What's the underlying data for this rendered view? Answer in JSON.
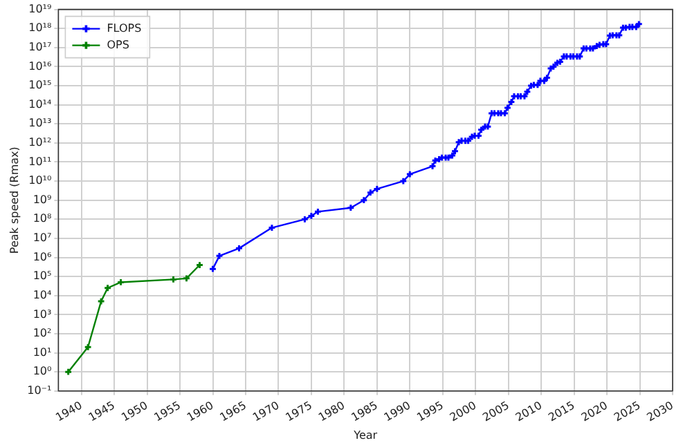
{
  "chart_data": {
    "type": "line",
    "xlabel": "Year",
    "ylabel": "Peak speed (Rmax)",
    "log": "y",
    "grid": true,
    "legend": "top left",
    "marker": "cross",
    "line_style": "solid",
    "xlim": [
      1936.5,
      2030
    ],
    "xticks": [
      1940,
      1945,
      1950,
      1955,
      1960,
      1965,
      1970,
      1975,
      1980,
      1985,
      1990,
      1995,
      2000,
      2005,
      2010,
      2015,
      2020,
      2025,
      2030
    ],
    "ylim": [
      0.1,
      1e+19
    ],
    "yticks": [
      {
        "value": 0.1,
        "label": "10⁻¹"
      },
      {
        "value": 1,
        "label": "10⁰"
      },
      {
        "value": 10,
        "label": "10¹"
      },
      {
        "value": 100,
        "label": "10²"
      },
      {
        "value": 1000.0,
        "label": "10³"
      },
      {
        "value": 10000.0,
        "label": "10⁴"
      },
      {
        "value": 100000.0,
        "label": "10⁵"
      },
      {
        "value": 1000000.0,
        "label": "10⁶"
      },
      {
        "value": 10000000.0,
        "label": "10⁷"
      },
      {
        "value": 100000000.0,
        "label": "10⁸"
      },
      {
        "value": 1000000000.0,
        "label": "10⁹"
      },
      {
        "value": 10000000000.0,
        "label": "10¹⁰"
      },
      {
        "value": 100000000000.0,
        "label": "10¹¹"
      },
      {
        "value": 1000000000000.0,
        "label": "10¹²"
      },
      {
        "value": 10000000000000.0,
        "label": "10¹³"
      },
      {
        "value": 100000000000000.0,
        "label": "10¹⁴"
      },
      {
        "value": 1000000000000000.0,
        "label": "10¹⁵"
      },
      {
        "value": 1e+16,
        "label": "10¹⁶"
      },
      {
        "value": 1e+17,
        "label": "10¹⁷"
      },
      {
        "value": 1e+18,
        "label": "10¹⁸"
      },
      {
        "value": 1e+19,
        "label": "10¹⁹"
      }
    ],
    "series": [
      {
        "name": "FLOPS",
        "color": "#0000ff",
        "x": [
          1960,
          1961,
          1964,
          1969,
          1974,
          1975,
          1976,
          1981,
          1983,
          1984,
          1985,
          1989,
          1990,
          1993.45,
          1993.87,
          1994.45,
          1994.87,
          1995.45,
          1995.87,
          1996.45,
          1996.87,
          1997.45,
          1997.87,
          1998.45,
          1998.87,
          1999.45,
          1999.87,
          2000.45,
          2000.87,
          2001.45,
          2001.87,
          2002.45,
          2002.87,
          2003.45,
          2003.87,
          2004.45,
          2004.87,
          2005.45,
          2005.87,
          2006.45,
          2006.87,
          2007.45,
          2007.87,
          2008.45,
          2008.87,
          2009.45,
          2009.87,
          2010.45,
          2010.87,
          2011.45,
          2011.87,
          2012.45,
          2012.87,
          2013.45,
          2013.87,
          2014.45,
          2014.87,
          2015.45,
          2015.87,
          2016.45,
          2016.87,
          2017.45,
          2017.87,
          2018.45,
          2018.87,
          2019.45,
          2019.87,
          2020.45,
          2020.87,
          2021.45,
          2021.87,
          2022.45,
          2022.87,
          2023.45,
          2023.87,
          2024.45,
          2024.87
        ],
        "values": [
          250000.0,
          1200000.0,
          3000000.0,
          36000000.0,
          100000000.0,
          150000000.0,
          250000000.0,
          400000000.0,
          1000000000.0,
          2500000000.0,
          3900000000.0,
          10000000000.0,
          23000000000.0,
          60000000000.0,
          120000000000.0,
          140000000000.0,
          170000000000.0,
          170000000000.0,
          170000000000.0,
          220000000000.0,
          370000000000.0,
          1100000000000.0,
          1300000000000.0,
          1300000000000.0,
          1300000000000.0,
          2100000000000.0,
          2400000000000.0,
          2400000000000.0,
          4900000000000.0,
          7200000000000.0,
          7200000000000.0,
          36000000000000.0,
          36000000000000.0,
          36000000000000.0,
          36000000000000.0,
          36000000000000.0,
          70000000000000.0,
          140000000000000.0,
          280000000000000.0,
          280000000000000.0,
          280000000000000.0,
          280000000000000.0,
          480000000000000.0,
          1000000000000000.0,
          1100000000000000.0,
          1100000000000000.0,
          1800000000000000.0,
          1800000000000000.0,
          2600000000000000.0,
          8000000000000000.0,
          1e+16,
          1.6e+16,
          1.8e+16,
          3.4e+16,
          3.4e+16,
          3.4e+16,
          3.4e+16,
          3.4e+16,
          3.4e+16,
          9e+16,
          9e+16,
          9e+16,
          9e+16,
          1.2e+17,
          1.4e+17,
          1.5e+17,
          1.5e+17,
          4.2e+17,
          4.4e+17,
          4.4e+17,
          4.4e+17,
          1.1e+18,
          1.1e+18,
          1.2e+18,
          1.2e+18,
          1.2e+18,
          1.7e+18
        ]
      },
      {
        "name": "OPS",
        "color": "#008000",
        "x": [
          1938,
          1941,
          1943,
          1944,
          1946,
          1954,
          1956,
          1958
        ],
        "values": [
          1,
          20,
          5000.0,
          25000.0,
          50000.0,
          70000.0,
          80000.0,
          400000.0
        ]
      }
    ]
  }
}
